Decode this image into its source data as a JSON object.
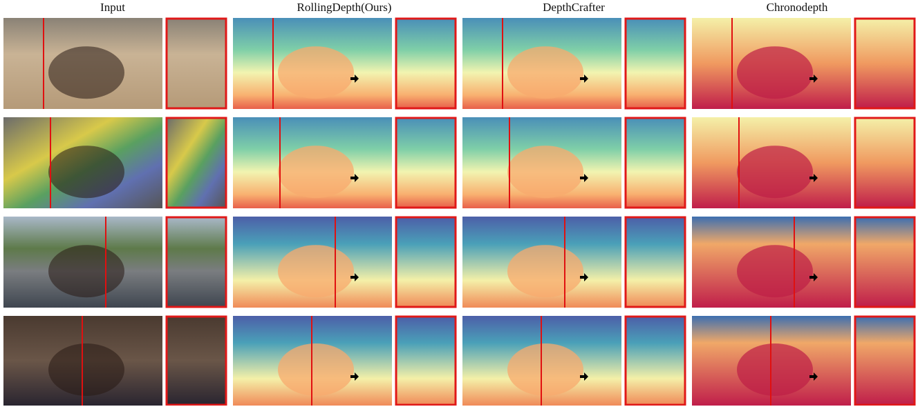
{
  "columns": [
    "Input",
    "RollingDepth(Ours)",
    "DepthCrafter",
    "Chronodepth"
  ]
}
